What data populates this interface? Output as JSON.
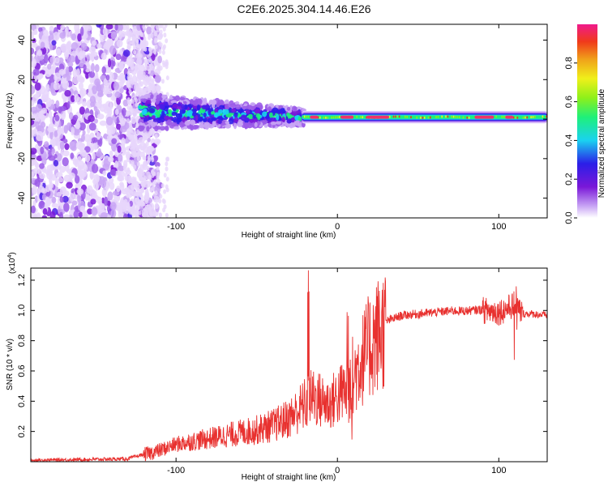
{
  "title": "C2E6.2025.304.14.46.E26",
  "chart_data": [
    {
      "type": "heatmap",
      "xlabel": "Height of straight line (km)",
      "ylabel": "Frequency (Hz)",
      "xlim": [
        -190,
        130
      ],
      "ylim": [
        -50,
        48
      ],
      "xticks": [
        -100,
        0,
        100
      ],
      "yticks": [
        -40,
        -20,
        0,
        20,
        40
      ],
      "colorbar": {
        "label": "Normalized spectral amplitude",
        "ticks": [
          0.0,
          0.2,
          0.4,
          0.6,
          0.8
        ],
        "range": [
          0,
          1
        ]
      },
      "description_points": [
        {
          "height_km": -190,
          "freq_hz": 0,
          "note": "broadband noise region"
        },
        {
          "height_km": -120,
          "freq_hz": 8
        },
        {
          "height_km": -100,
          "freq_hz": 3
        },
        {
          "height_km": -60,
          "freq_hz": 2
        },
        {
          "height_km": -20,
          "freq_hz": 1
        },
        {
          "height_km": 0,
          "freq_hz": 1
        },
        {
          "height_km": 100,
          "freq_hz": 1
        },
        {
          "height_km": 130,
          "freq_hz": 1
        }
      ]
    },
    {
      "type": "line",
      "xlabel": "Height of straight line (km)",
      "ylabel": "SNR (10 * v/v)",
      "yscale_note": "(x10",
      "yscale_exp": "4",
      "yscale_close": ")",
      "xlim": [
        -190,
        130
      ],
      "ylim": [
        0,
        1.28
      ],
      "xticks": [
        -100,
        0,
        100
      ],
      "yticks": [
        0.2,
        0.4,
        0.6,
        0.8,
        1.0,
        1.2
      ],
      "series": [
        {
          "name": "SNR",
          "color": "#e8312f",
          "x": [
            -190,
            -130,
            -120,
            -110,
            -100,
            -90,
            -80,
            -70,
            -60,
            -50,
            -40,
            -30,
            -25,
            -20,
            -15,
            -10,
            -5,
            0,
            5,
            10,
            15,
            20,
            25,
            30,
            40,
            50,
            60,
            70,
            80,
            90,
            100,
            105,
            110,
            115,
            120,
            130
          ],
          "y": [
            0.01,
            0.02,
            0.05,
            0.08,
            0.12,
            0.14,
            0.16,
            0.18,
            0.2,
            0.22,
            0.25,
            0.3,
            0.35,
            0.4,
            0.45,
            0.42,
            0.4,
            0.45,
            0.5,
            0.6,
            0.7,
            0.8,
            0.88,
            0.93,
            0.97,
            0.98,
            0.99,
            1.0,
            1.0,
            1.01,
            1.0,
            1.02,
            1.05,
            0.98,
            0.98,
            0.97
          ]
        }
      ]
    }
  ]
}
